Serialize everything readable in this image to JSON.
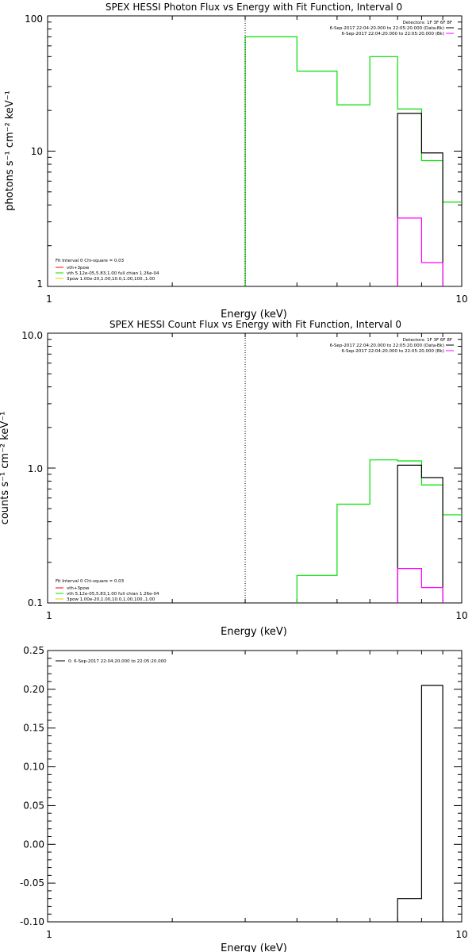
{
  "panels": [
    {
      "title": "SPEX HESSI Photon Flux vs Energy with Fit Function, Interval 0",
      "xlabel": "Energy (keV)",
      "ylabel": "photons s⁻¹ cm⁻² keV⁻¹"
    },
    {
      "title": "SPEX HESSI Count Flux vs Energy with Fit Function, Interval 0",
      "xlabel": "Energy (keV)",
      "ylabel": "counts s⁻¹ cm⁻² keV⁻¹"
    },
    {
      "title": "",
      "xlabel": "Energy (keV)",
      "ylabel": ""
    }
  ],
  "legends": {
    "top_right": {
      "detectors": "Detectors: 1F 3F 6F 8F",
      "data": "6-Sep-2017 22:04:20.000 to 22:05:20.000 (Data-Bk)",
      "bk": "6-Sep-2017 22:04:20.000 to 22:05:20.000 (Bk)"
    },
    "fit": {
      "header": "Fit Interval  0   Chi-square = 0.03",
      "total": "vth+3pow",
      "vth": "vth 5.12e-05,5.83,1.00  full chian 1.26e-04",
      "pow": "3pow 1.00e-20,1.00,10.0,1.00,100.,1.00"
    },
    "resid": "0:  6-Sep-2017 22:04:20.000 to 22:05:20.000"
  },
  "colors": {
    "data": "#000000",
    "background": "#ff00ff",
    "model": "#00e000",
    "total": "#ff0000",
    "pow": "#d4d000"
  },
  "chart_data": [
    {
      "type": "line",
      "title": "SPEX HESSI Photon Flux vs Energy with Fit Function, Interval 0",
      "xlabel": "Energy (keV)",
      "ylabel": "photons s⁻¹ cm⁻² keV⁻¹",
      "xscale": "log",
      "yscale": "log",
      "xlim": [
        1,
        10
      ],
      "ylim": [
        1,
        100
      ],
      "xticks": [
        "1",
        "10"
      ],
      "yticks": [
        "1",
        "10",
        "100"
      ],
      "vline": 3.0,
      "series": [
        {
          "name": "vth 5.12e-05,5.83,1.00  full chian 1.26e-04",
          "color": "#00e000",
          "edges": [
            3.0,
            4.0,
            5.0,
            6.0,
            7.0,
            8.0,
            9.0,
            10.0
          ],
          "values": [
            70,
            39,
            22,
            50,
            20.5,
            8.5,
            4.2
          ]
        },
        {
          "name": "Data-Bk",
          "color": "#000000",
          "edges": [
            7.0,
            8.0,
            9.0
          ],
          "values": [
            19,
            9.7
          ]
        },
        {
          "name": "Bk",
          "color": "#ff00ff",
          "edges": [
            7.0,
            8.0,
            9.0
          ],
          "values": [
            3.2,
            1.5
          ]
        }
      ]
    },
    {
      "type": "line",
      "title": "SPEX HESSI Count Flux vs Energy with Fit Function, Interval 0",
      "xlabel": "Energy (keV)",
      "ylabel": "counts s⁻¹ cm⁻² keV⁻¹",
      "xscale": "log",
      "yscale": "log",
      "xlim": [
        1,
        10
      ],
      "ylim": [
        0.1,
        10
      ],
      "xticks": [
        "1",
        "10"
      ],
      "yticks": [
        "0.1",
        "1.0",
        "10.0"
      ],
      "vline": 3.0,
      "series": [
        {
          "name": "vth 5.12e-05,5.83,1.00  full chian 1.26e-04",
          "color": "#00e000",
          "edges": [
            4.0,
            5.0,
            6.0,
            7.0,
            8.0,
            9.0,
            10.0
          ],
          "values": [
            0.16,
            0.54,
            1.15,
            1.13,
            0.75,
            0.45
          ]
        },
        {
          "name": "Data-Bk",
          "color": "#000000",
          "edges": [
            7.0,
            8.0,
            9.0
          ],
          "values": [
            1.05,
            0.85
          ]
        },
        {
          "name": "Bk",
          "color": "#ff00ff",
          "edges": [
            7.0,
            8.0,
            9.0
          ],
          "values": [
            0.18,
            0.13
          ]
        }
      ]
    },
    {
      "type": "bar",
      "title": "",
      "xlabel": "Energy (keV)",
      "ylabel": "",
      "xscale": "log",
      "yscale": "linear",
      "xlim": [
        1,
        10
      ],
      "ylim": [
        -0.1,
        0.25
      ],
      "xticks": [
        "1",
        "10"
      ],
      "yticks": [
        "-0.10",
        "-0.05",
        "0.00",
        "0.05",
        "0.10",
        "0.15",
        "0.20",
        "0.25"
      ],
      "series": [
        {
          "name": "0:  6-Sep-2017 22:04:20.000 to 22:05:20.000",
          "color": "#000000",
          "edges": [
            7.0,
            8.0,
            9.0
          ],
          "values": [
            -0.07,
            0.205
          ]
        }
      ]
    }
  ]
}
